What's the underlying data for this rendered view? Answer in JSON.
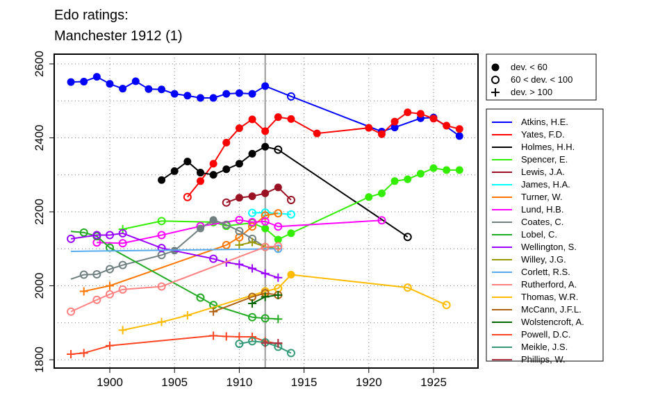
{
  "chart_data": {
    "type": "line",
    "title": [
      "Edo ratings:",
      "Manchester 1912 (1)"
    ],
    "xlabel": "",
    "ylabel": "",
    "xlim": [
      1896,
      1928
    ],
    "ylim": [
      1775,
      2625
    ],
    "xticks": [
      1900,
      1905,
      1910,
      1915,
      1920,
      1925
    ],
    "yticks": [
      2600,
      2400,
      2200,
      2000,
      1800
    ],
    "grid": true,
    "highlight_year": 1912,
    "marker_legend": [
      {
        "m": "f",
        "label": "dev. < 60"
      },
      {
        "m": "o",
        "label": "60 < dev. < 100"
      },
      {
        "m": "p",
        "label": "dev. > 100"
      }
    ],
    "series": [
      {
        "name": "Atkins, H.E.",
        "color": "#0000ff",
        "points": [
          [
            1897,
            2551,
            "f"
          ],
          [
            1898,
            2552,
            "f"
          ],
          [
            1899,
            2565,
            "f"
          ],
          [
            1900,
            2546,
            "f"
          ],
          [
            1901,
            2533,
            "f"
          ],
          [
            1902,
            2553,
            "f"
          ],
          [
            1903,
            2532,
            "f"
          ],
          [
            1904,
            2531,
            "f"
          ],
          [
            1905,
            2519,
            "f"
          ],
          [
            1906,
            2514,
            "f"
          ],
          [
            1907,
            2508,
            "f"
          ],
          [
            1908,
            2508,
            "f"
          ],
          [
            1909,
            2519,
            "f"
          ],
          [
            1910,
            2521,
            "f"
          ],
          [
            1911,
            2519,
            "f"
          ],
          [
            1912,
            2540,
            "f"
          ],
          [
            1914,
            2512,
            "o"
          ],
          [
            1921,
            2417,
            "f"
          ],
          [
            1922,
            2428,
            "f"
          ],
          [
            1924,
            2453,
            "f"
          ],
          [
            1925,
            2455,
            "f"
          ],
          [
            1927,
            2405,
            "f"
          ]
        ]
      },
      {
        "name": "Yates, F.D.",
        "color": "#ff0000",
        "points": [
          [
            1906,
            2240,
            "o"
          ],
          [
            1907,
            2283,
            "f"
          ],
          [
            1908,
            2330,
            "f"
          ],
          [
            1909,
            2387,
            "f"
          ],
          [
            1910,
            2426,
            "f"
          ],
          [
            1911,
            2450,
            "f"
          ],
          [
            1912,
            2418,
            "f"
          ],
          [
            1913,
            2456,
            "f"
          ],
          [
            1914,
            2451,
            "f"
          ],
          [
            1916,
            2412,
            "f"
          ],
          [
            1920,
            2427,
            "f"
          ],
          [
            1921,
            2410,
            "f"
          ],
          [
            1922,
            2444,
            "f"
          ],
          [
            1923,
            2469,
            "f"
          ],
          [
            1924,
            2465,
            "f"
          ],
          [
            1925,
            2452,
            "f"
          ],
          [
            1926,
            2433,
            "f"
          ],
          [
            1927,
            2424,
            "f"
          ]
        ]
      },
      {
        "name": "Holmes, H.H.",
        "color": "#000000",
        "points": [
          [
            1904,
            2286,
            "f"
          ],
          [
            1905,
            2310,
            "f"
          ],
          [
            1906,
            2336,
            "f"
          ],
          [
            1907,
            2306,
            "f"
          ],
          [
            1908,
            2300,
            "f"
          ],
          [
            1909,
            2315,
            "f"
          ],
          [
            1910,
            2330,
            "f"
          ],
          [
            1911,
            2357,
            "f"
          ],
          [
            1912,
            2376,
            "f"
          ],
          [
            1913,
            2368,
            "o"
          ],
          [
            1923,
            2132,
            "o"
          ]
        ]
      },
      {
        "name": "Spencer, E.",
        "color": "#33ee00",
        "points": [
          [
            1901,
            2153,
            "p"
          ],
          [
            1904,
            2175,
            "o"
          ],
          [
            1908,
            2172,
            "o"
          ],
          [
            1909,
            2162,
            "o"
          ],
          [
            1911,
            2170,
            "o"
          ],
          [
            1912,
            2155,
            "f"
          ],
          [
            1913,
            2125,
            "f"
          ],
          [
            1914,
            2142,
            "f"
          ],
          [
            1920,
            2240,
            "f"
          ],
          [
            1921,
            2250,
            "f"
          ],
          [
            1922,
            2283,
            "f"
          ],
          [
            1923,
            2288,
            "f"
          ],
          [
            1924,
            2303,
            "f"
          ],
          [
            1925,
            2318,
            "f"
          ],
          [
            1926,
            2313,
            "f"
          ],
          [
            1927,
            2313,
            "f"
          ]
        ]
      },
      {
        "name": "Lewis, J.A.",
        "color": "#991122",
        "points": [
          [
            1909,
            2225,
            "o"
          ],
          [
            1910,
            2238,
            "f"
          ],
          [
            1911,
            2242,
            "f"
          ],
          [
            1912,
            2250,
            "f"
          ],
          [
            1913,
            2266,
            "f"
          ],
          [
            1914,
            2232,
            "o"
          ]
        ]
      },
      {
        "name": "James, H.A.",
        "color": "#00ffff",
        "points": [
          [
            1911,
            2197,
            "o"
          ],
          [
            1912,
            2198,
            "o"
          ],
          [
            1914,
            2193,
            "o"
          ]
        ]
      },
      {
        "name": "Turner, W.",
        "color": "#ff7700",
        "points": [
          [
            1898,
            1985,
            "p"
          ],
          [
            1900,
            2000,
            "p"
          ],
          [
            1909,
            2110,
            "o"
          ],
          [
            1910,
            2131,
            "o"
          ],
          [
            1911,
            2160,
            "o"
          ],
          [
            1912,
            2190,
            "o"
          ],
          [
            1913,
            2196,
            "o"
          ]
        ]
      },
      {
        "name": "Lund, H.B.",
        "color": "#ff00ff",
        "points": [
          [
            1899,
            2117,
            "o"
          ],
          [
            1901,
            2115,
            "o"
          ],
          [
            1904,
            2137,
            "o"
          ],
          [
            1907,
            2161,
            "o"
          ],
          [
            1910,
            2178,
            "o"
          ],
          [
            1911,
            2172,
            "o"
          ],
          [
            1912,
            2174,
            "o"
          ],
          [
            1913,
            2160,
            "o"
          ],
          [
            1921,
            2177,
            "o"
          ]
        ]
      },
      {
        "name": "Coates, C.",
        "color": "#708080",
        "points": [
          [
            1897,
            2018,
            "n"
          ],
          [
            1898,
            2030,
            "o"
          ],
          [
            1899,
            2031,
            "o"
          ],
          [
            1900,
            2045,
            "o"
          ],
          [
            1901,
            2056,
            "o"
          ],
          [
            1904,
            2083,
            "o"
          ],
          [
            1905,
            2095,
            "f"
          ],
          [
            1907,
            2155,
            "f"
          ],
          [
            1908,
            2178,
            "f"
          ],
          [
            1909,
            2165,
            "o"
          ],
          [
            1910,
            2148,
            "o"
          ],
          [
            1911,
            2127,
            "o"
          ],
          [
            1912,
            2105,
            "o"
          ]
        ]
      },
      {
        "name": "Lobel, C.",
        "color": "#22aa22",
        "points": [
          [
            1897,
            2147,
            "n"
          ],
          [
            1898,
            2144,
            "o"
          ],
          [
            1899,
            2134,
            "o"
          ],
          [
            1900,
            2103,
            "o"
          ],
          [
            1907,
            1968,
            "o"
          ],
          [
            1908,
            1948,
            "o"
          ],
          [
            1911,
            1915,
            "o"
          ],
          [
            1912,
            1912,
            "o"
          ],
          [
            1913,
            1910,
            "p"
          ]
        ]
      },
      {
        "name": "Wellington, S.",
        "color": "#9900ff",
        "points": [
          [
            1897,
            2127,
            "o"
          ],
          [
            1899,
            2137,
            "o"
          ],
          [
            1900,
            2137,
            "o"
          ],
          [
            1901,
            2142,
            "o"
          ],
          [
            1904,
            2102,
            "o"
          ],
          [
            1908,
            2073,
            "o"
          ],
          [
            1909,
            2063,
            "p"
          ],
          [
            1910,
            2058,
            "p"
          ],
          [
            1911,
            2047,
            "p"
          ],
          [
            1912,
            2033,
            "p"
          ],
          [
            1913,
            2022,
            "p"
          ]
        ]
      },
      {
        "name": "Willey, J.G.",
        "color": "#999900",
        "points": [
          [
            1910,
            2110,
            "p"
          ],
          [
            1911,
            2118,
            "p"
          ],
          [
            1912,
            2105,
            "p"
          ],
          [
            1913,
            2100,
            "p"
          ]
        ]
      },
      {
        "name": "Corlett, R.S.",
        "color": "#55aaee",
        "points": [
          [
            1897,
            2093,
            "n"
          ],
          [
            1913,
            2100,
            "o"
          ]
        ]
      },
      {
        "name": "Rutherford, A.",
        "color": "#ff8080",
        "points": [
          [
            1897,
            1930,
            "o"
          ],
          [
            1899,
            1962,
            "o"
          ],
          [
            1900,
            1977,
            "o"
          ],
          [
            1901,
            1990,
            "o"
          ],
          [
            1904,
            1998,
            "o"
          ],
          [
            1912,
            2105,
            "o"
          ],
          [
            1913,
            2107,
            "o"
          ]
        ]
      },
      {
        "name": "Thomas, W.R.",
        "color": "#ffbb00",
        "points": [
          [
            1901,
            1880,
            "p"
          ],
          [
            1904,
            1902,
            "p"
          ],
          [
            1906,
            1920,
            "p"
          ],
          [
            1912,
            1985,
            "o"
          ],
          [
            1913,
            1993,
            "o"
          ],
          [
            1914,
            2030,
            "f"
          ],
          [
            1923,
            1995,
            "o"
          ],
          [
            1926,
            1948,
            "o"
          ]
        ]
      },
      {
        "name": "McCann, J.F.L.",
        "color": "#b06010",
        "points": [
          [
            1908,
            1930,
            "p"
          ],
          [
            1911,
            1970,
            "o"
          ],
          [
            1912,
            1980,
            "o"
          ],
          [
            1913,
            1975,
            "o"
          ]
        ]
      },
      {
        "name": "Wolstencroft, A.",
        "color": "#006600",
        "points": [
          [
            1911,
            1952,
            "p"
          ],
          [
            1912,
            1970,
            "p"
          ],
          [
            1913,
            1975,
            "p"
          ]
        ]
      },
      {
        "name": "Powell, D.C.",
        "color": "#ff4422",
        "points": [
          [
            1897,
            1815,
            "p"
          ],
          [
            1898,
            1818,
            "p"
          ],
          [
            1900,
            1838,
            "p"
          ],
          [
            1908,
            1865,
            "p"
          ],
          [
            1909,
            1863,
            "p"
          ],
          [
            1910,
            1862,
            "p"
          ],
          [
            1911,
            1862,
            "p"
          ],
          [
            1912,
            1850,
            "p"
          ],
          [
            1913,
            1843,
            "p"
          ]
        ]
      },
      {
        "name": "Meikle, J.S.",
        "color": "#339977",
        "points": [
          [
            1910,
            1843,
            "o"
          ],
          [
            1911,
            1850,
            "o"
          ],
          [
            1912,
            1847,
            "o"
          ],
          [
            1913,
            1835,
            "o"
          ],
          [
            1914,
            1818,
            "o"
          ]
        ]
      },
      {
        "name": "Phillips, W.",
        "color": "#aa3344",
        "points": [
          [
            1912,
            1845,
            "p"
          ],
          [
            1913,
            1845,
            "p"
          ]
        ]
      }
    ]
  }
}
